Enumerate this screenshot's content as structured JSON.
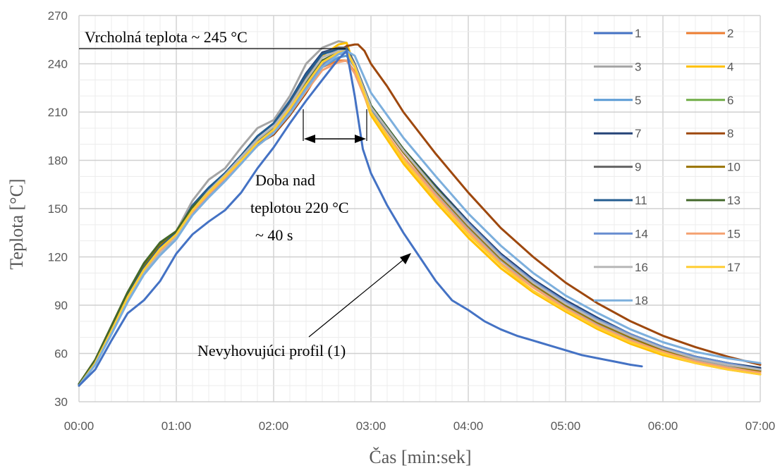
{
  "chart_data": {
    "type": "line",
    "title": "",
    "xlabel": "Čas [min:sek]",
    "ylabel": "Teplota [°C]",
    "x_unit": "seconds",
    "xlim": [
      0,
      420
    ],
    "ylim": [
      30,
      270
    ],
    "x_ticks": [
      {
        "value": 0,
        "label": "00:00"
      },
      {
        "value": 60,
        "label": "01:00"
      },
      {
        "value": 120,
        "label": "02:00"
      },
      {
        "value": 180,
        "label": "03:00"
      },
      {
        "value": 240,
        "label": "04:00"
      },
      {
        "value": 300,
        "label": "05:00"
      },
      {
        "value": 360,
        "label": "06:00"
      },
      {
        "value": 420,
        "label": "07:00"
      }
    ],
    "y_ticks": [
      {
        "value": 30,
        "label": "30"
      },
      {
        "value": 60,
        "label": "60"
      },
      {
        "value": 90,
        "label": "90"
      },
      {
        "value": 120,
        "label": "120"
      },
      {
        "value": 150,
        "label": "150"
      },
      {
        "value": 180,
        "label": "180"
      },
      {
        "value": 210,
        "label": "210"
      },
      {
        "value": 240,
        "label": "240"
      },
      {
        "value": 270,
        "label": "270"
      }
    ],
    "grid": true,
    "legend_position": "right",
    "series": [
      {
        "name": "1",
        "color": "#4472C4",
        "x": [
          0,
          10,
          20,
          30,
          40,
          50,
          60,
          70,
          80,
          90,
          100,
          110,
          120,
          130,
          140,
          150,
          160,
          165,
          170,
          175,
          180,
          190,
          200,
          210,
          220,
          230,
          240,
          250,
          260,
          270,
          280,
          290,
          300,
          310,
          320,
          330,
          340,
          347
        ],
        "y": [
          40,
          50,
          68,
          85,
          93,
          105,
          122,
          134,
          142,
          149,
          160,
          175,
          188,
          203,
          217,
          230,
          243,
          248,
          220,
          187,
          172,
          152,
          135,
          120,
          105,
          93,
          87,
          80,
          75,
          71,
          68,
          65,
          62,
          59,
          57,
          55,
          53,
          52
        ]
      },
      {
        "name": "2",
        "color": "#ED7D31",
        "x": [
          0,
          10,
          20,
          30,
          40,
          50,
          60,
          70,
          80,
          90,
          100,
          110,
          120,
          130,
          140,
          150,
          160,
          165,
          170,
          180,
          200,
          220,
          240,
          260,
          280,
          300,
          320,
          340,
          360,
          380,
          400,
          420
        ],
        "y": [
          41,
          55,
          75,
          95,
          113,
          127,
          135,
          150,
          160,
          170,
          180,
          190,
          198,
          210,
          224,
          238,
          242,
          242,
          235,
          212,
          185,
          160,
          138,
          118,
          103,
          89,
          78,
          69,
          61,
          56,
          52,
          49
        ]
      },
      {
        "name": "3",
        "color": "#A5A5A5",
        "x": [
          0,
          10,
          20,
          30,
          40,
          50,
          60,
          70,
          80,
          90,
          100,
          110,
          120,
          130,
          140,
          150,
          160,
          165,
          170,
          180,
          200,
          220,
          240,
          260,
          280,
          300,
          320,
          340,
          360,
          380,
          400,
          420
        ],
        "y": [
          41,
          56,
          76,
          96,
          113,
          125,
          136,
          155,
          168,
          175,
          188,
          200,
          205,
          220,
          240,
          250,
          254,
          253,
          238,
          210,
          182,
          159,
          138,
          118,
          102,
          89,
          78,
          69,
          61,
          56,
          52,
          49
        ]
      },
      {
        "name": "4",
        "color": "#FFC000",
        "x": [
          0,
          10,
          20,
          30,
          40,
          50,
          60,
          70,
          80,
          90,
          100,
          110,
          120,
          130,
          140,
          150,
          160,
          165,
          170,
          180,
          200,
          220,
          240,
          260,
          280,
          300,
          320,
          340,
          360,
          380,
          400,
          420
        ],
        "y": [
          40,
          54,
          74,
          95,
          112,
          125,
          135,
          150,
          162,
          170,
          180,
          192,
          200,
          213,
          228,
          245,
          252,
          253,
          238,
          208,
          178,
          154,
          132,
          113,
          98,
          86,
          75,
          66,
          59,
          54,
          50,
          47
        ]
      },
      {
        "name": "5",
        "color": "#5B9BD5",
        "x": [
          0,
          10,
          20,
          30,
          40,
          50,
          60,
          70,
          80,
          90,
          100,
          110,
          120,
          130,
          140,
          150,
          160,
          165,
          170,
          180,
          200,
          220,
          240,
          260,
          280,
          300,
          320,
          340,
          360,
          380,
          400,
          420
        ],
        "y": [
          40,
          53,
          72,
          93,
          110,
          122,
          132,
          147,
          158,
          168,
          178,
          190,
          198,
          210,
          226,
          238,
          244,
          245,
          238,
          212,
          185,
          161,
          140,
          120,
          104,
          91,
          80,
          71,
          63,
          58,
          54,
          50
        ]
      },
      {
        "name": "6",
        "color": "#70AD47",
        "x": [
          0,
          10,
          20,
          30,
          40,
          50,
          60,
          70,
          80,
          90,
          100,
          110,
          120,
          130,
          140,
          150,
          160,
          165,
          170,
          180,
          200,
          220,
          240,
          260,
          280,
          300,
          320,
          340,
          360,
          380,
          400,
          420
        ],
        "y": [
          41,
          55,
          75,
          96,
          114,
          128,
          136,
          151,
          161,
          171,
          181,
          192,
          200,
          212,
          227,
          240,
          246,
          247,
          238,
          214,
          186,
          163,
          141,
          121,
          105,
          92,
          81,
          72,
          64,
          58,
          54,
          50
        ]
      },
      {
        "name": "7",
        "color": "#264478",
        "x": [
          0,
          10,
          20,
          30,
          40,
          50,
          60,
          70,
          80,
          90,
          100,
          110,
          120,
          130,
          140,
          150,
          160,
          165,
          170,
          180,
          200,
          220,
          240,
          260,
          280,
          300,
          320,
          340,
          360,
          380,
          400,
          420
        ],
        "y": [
          40,
          55,
          76,
          96,
          113,
          126,
          135,
          152,
          163,
          172,
          183,
          195,
          203,
          217,
          234,
          247,
          250,
          250,
          240,
          214,
          187,
          164,
          142,
          122,
          106,
          93,
          82,
          72,
          64,
          58,
          54,
          51
        ]
      },
      {
        "name": "8",
        "color": "#9E480E",
        "x": [
          0,
          10,
          20,
          30,
          40,
          50,
          60,
          70,
          80,
          90,
          100,
          110,
          120,
          130,
          140,
          150,
          160,
          165,
          170,
          172,
          176,
          180,
          190,
          200,
          220,
          240,
          260,
          280,
          300,
          320,
          340,
          360,
          380,
          400,
          420
        ],
        "y": [
          41,
          56,
          77,
          98,
          115,
          128,
          135,
          150,
          160,
          170,
          180,
          190,
          196,
          208,
          222,
          238,
          248,
          251,
          252,
          252,
          248,
          240,
          226,
          210,
          184,
          160,
          138,
          120,
          104,
          91,
          80,
          71,
          64,
          58,
          53
        ]
      },
      {
        "name": "9",
        "color": "#636363",
        "x": [
          0,
          10,
          20,
          30,
          40,
          50,
          60,
          70,
          80,
          90,
          100,
          110,
          120,
          130,
          140,
          150,
          160,
          165,
          170,
          180,
          200,
          220,
          240,
          260,
          280,
          300,
          320,
          340,
          360,
          380,
          400,
          420
        ],
        "y": [
          41,
          55,
          76,
          96,
          113,
          126,
          135,
          151,
          162,
          172,
          183,
          195,
          203,
          216,
          232,
          246,
          250,
          250,
          240,
          213,
          185,
          162,
          140,
          120,
          104,
          91,
          80,
          71,
          63,
          57,
          53,
          50
        ]
      },
      {
        "name": "10",
        "color": "#997300",
        "x": [
          0,
          10,
          20,
          30,
          40,
          50,
          60,
          70,
          80,
          90,
          100,
          110,
          120,
          130,
          140,
          150,
          160,
          165,
          170,
          180,
          200,
          220,
          240,
          260,
          280,
          300,
          320,
          340,
          360,
          380,
          400,
          420
        ],
        "y": [
          41,
          55,
          76,
          96,
          114,
          128,
          136,
          151,
          161,
          171,
          181,
          192,
          200,
          212,
          228,
          242,
          247,
          247,
          238,
          213,
          185,
          161,
          139,
          119,
          103,
          90,
          79,
          70,
          62,
          57,
          53,
          49
        ]
      },
      {
        "name": "11",
        "color": "#255E91",
        "x": [
          0,
          10,
          20,
          30,
          40,
          50,
          60,
          70,
          80,
          90,
          100,
          110,
          120,
          130,
          140,
          150,
          160,
          165,
          170,
          180,
          200,
          220,
          240,
          260,
          280,
          300,
          320,
          340,
          360,
          380,
          400,
          420
        ],
        "y": [
          41,
          55,
          76,
          96,
          113,
          126,
          135,
          152,
          163,
          172,
          183,
          195,
          203,
          217,
          233,
          246,
          249,
          249,
          239,
          213,
          186,
          162,
          140,
          120,
          104,
          91,
          80,
          71,
          63,
          58,
          54,
          50
        ]
      },
      {
        "name": "13",
        "color": "#43682B",
        "x": [
          0,
          10,
          20,
          30,
          40,
          50,
          60,
          70,
          80,
          90,
          100,
          110,
          120,
          130,
          140,
          150,
          160,
          165,
          170,
          180,
          200,
          220,
          240,
          260,
          280,
          300,
          320,
          340,
          360,
          380,
          400,
          420
        ],
        "y": [
          41,
          56,
          77,
          98,
          116,
          129,
          136,
          151,
          161,
          171,
          181,
          192,
          200,
          212,
          228,
          242,
          247,
          247,
          239,
          214,
          187,
          163,
          141,
          121,
          105,
          92,
          81,
          72,
          64,
          58,
          54,
          50
        ]
      },
      {
        "name": "14",
        "color": "#698ED0",
        "x": [
          0,
          10,
          20,
          30,
          40,
          50,
          60,
          70,
          80,
          90,
          100,
          110,
          120,
          130,
          140,
          150,
          160,
          165,
          170,
          180,
          200,
          220,
          240,
          260,
          280,
          300,
          320,
          340,
          360,
          380,
          400,
          420
        ],
        "y": [
          40,
          53,
          72,
          92,
          109,
          121,
          131,
          147,
          159,
          169,
          180,
          191,
          199,
          211,
          226,
          240,
          246,
          247,
          238,
          213,
          186,
          162,
          141,
          121,
          105,
          92,
          81,
          72,
          64,
          58,
          54,
          50
        ]
      },
      {
        "name": "15",
        "color": "#F4A272",
        "x": [
          0,
          10,
          20,
          30,
          40,
          50,
          60,
          70,
          80,
          90,
          100,
          110,
          120,
          130,
          140,
          150,
          160,
          165,
          170,
          180,
          200,
          220,
          240,
          260,
          280,
          300,
          320,
          340,
          360,
          380,
          400,
          420
        ],
        "y": [
          40,
          54,
          74,
          94,
          111,
          124,
          133,
          148,
          159,
          169,
          179,
          189,
          197,
          209,
          223,
          236,
          241,
          242,
          234,
          210,
          182,
          158,
          136,
          116,
          101,
          88,
          77,
          68,
          61,
          55,
          51,
          48
        ]
      },
      {
        "name": "16",
        "color": "#B7B7B7",
        "x": [
          0,
          10,
          20,
          30,
          40,
          50,
          60,
          70,
          80,
          90,
          100,
          110,
          120,
          130,
          140,
          150,
          160,
          165,
          170,
          180,
          200,
          220,
          240,
          260,
          280,
          300,
          320,
          340,
          360,
          380,
          400,
          420
        ],
        "y": [
          40,
          53,
          73,
          93,
          110,
          122,
          132,
          149,
          161,
          171,
          182,
          193,
          201,
          214,
          230,
          244,
          248,
          248,
          239,
          213,
          186,
          162,
          140,
          120,
          104,
          91,
          80,
          71,
          63,
          57,
          53,
          50
        ]
      },
      {
        "name": "17",
        "color": "#FFCD33",
        "x": [
          0,
          10,
          20,
          30,
          40,
          50,
          60,
          70,
          80,
          90,
          100,
          110,
          120,
          130,
          140,
          150,
          160,
          165,
          170,
          180,
          200,
          220,
          240,
          260,
          280,
          300,
          320,
          340,
          360,
          380,
          400,
          420
        ],
        "y": [
          40,
          54,
          74,
          95,
          112,
          125,
          134,
          149,
          160,
          170,
          180,
          191,
          199,
          212,
          227,
          241,
          247,
          248,
          238,
          210,
          180,
          156,
          134,
          115,
          99,
          87,
          76,
          67,
          60,
          54,
          50,
          47
        ]
      },
      {
        "name": "18",
        "color": "#7CAFDD",
        "x": [
          0,
          10,
          20,
          30,
          40,
          50,
          60,
          70,
          80,
          90,
          100,
          110,
          120,
          130,
          140,
          150,
          160,
          165,
          170,
          180,
          200,
          220,
          240,
          260,
          280,
          300,
          320,
          340,
          360,
          380,
          400,
          420
        ],
        "y": [
          40,
          53,
          72,
          92,
          109,
          121,
          131,
          146,
          157,
          167,
          178,
          189,
          197,
          209,
          224,
          238,
          246,
          248,
          245,
          222,
          194,
          170,
          147,
          127,
          110,
          96,
          85,
          75,
          67,
          61,
          57,
          54
        ]
      }
    ],
    "annotations": {
      "peak": "Vrcholná teplota ~ 245 °C",
      "duration_line1": "Doba nad",
      "duration_line2": "teplotou 220 °C",
      "duration_line3": "~ 40 s",
      "failing": "Nevyhovujúci profil (1)"
    }
  }
}
